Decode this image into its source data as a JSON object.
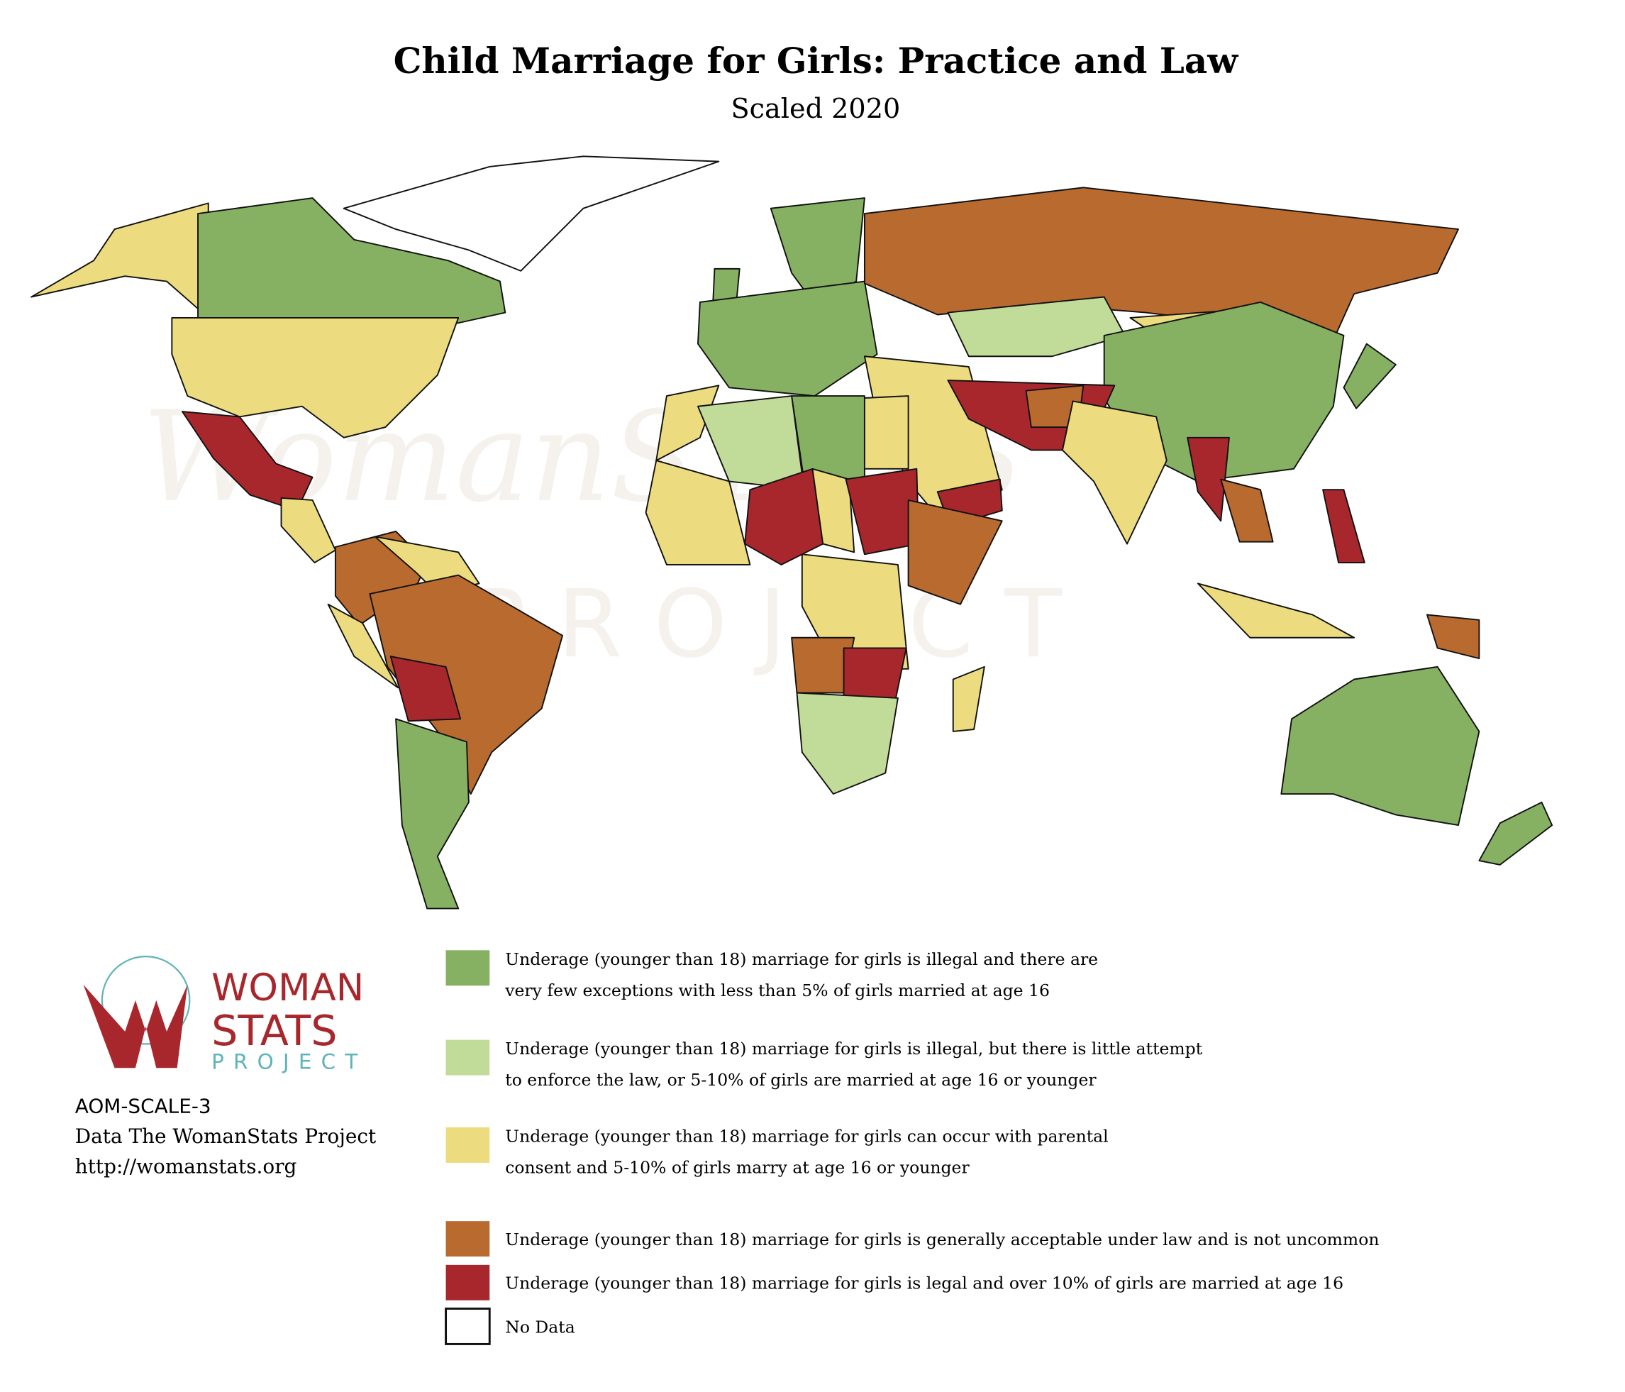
{
  "header": {
    "title": "Child Marriage for Girls: Practice and Law",
    "subtitle": "Scaled 2020"
  },
  "watermark": {
    "line1": "WomanSTATS",
    "line2": "PROJECT"
  },
  "legend": {
    "items": [
      {
        "lines": [
          "Underage (younger than 18) marriage for girls is illegal and there are",
          "very few exceptions with less than 5% of girls married at age 16"
        ],
        "color": "#86b062"
      },
      {
        "lines": [
          "Underage (younger than 18) marriage for girls is illegal, but there is little attempt",
          "to enforce the law, or 5-10% of girls are married at age 16 or younger"
        ],
        "color": "#c1dc98"
      },
      {
        "lines": [
          "Underage (younger than 18) marriage for girls can occur with parental",
          "consent and 5-10% of girls marry at age 16 or younger"
        ],
        "color": "#ecdc7f"
      },
      {
        "lines": [
          "Underage (younger than 18) marriage for girls is generally acceptable under law and is not uncommon"
        ],
        "color": "#b96a2f"
      },
      {
        "lines": [
          "Underage (younger than 18) marriage for girls is legal and over 10% of girls are married at age 16"
        ],
        "color": "#a8272d"
      },
      {
        "lines": [
          "No Data"
        ],
        "color": "#ffffff"
      }
    ]
  },
  "logo": {
    "line1": "WOMAN",
    "line2": "STATS",
    "line3": "PROJECT"
  },
  "source": {
    "lines": [
      "AOM-SCALE-3",
      "Data The WomanStats Project",
      "http://womanstats.org"
    ]
  }
}
